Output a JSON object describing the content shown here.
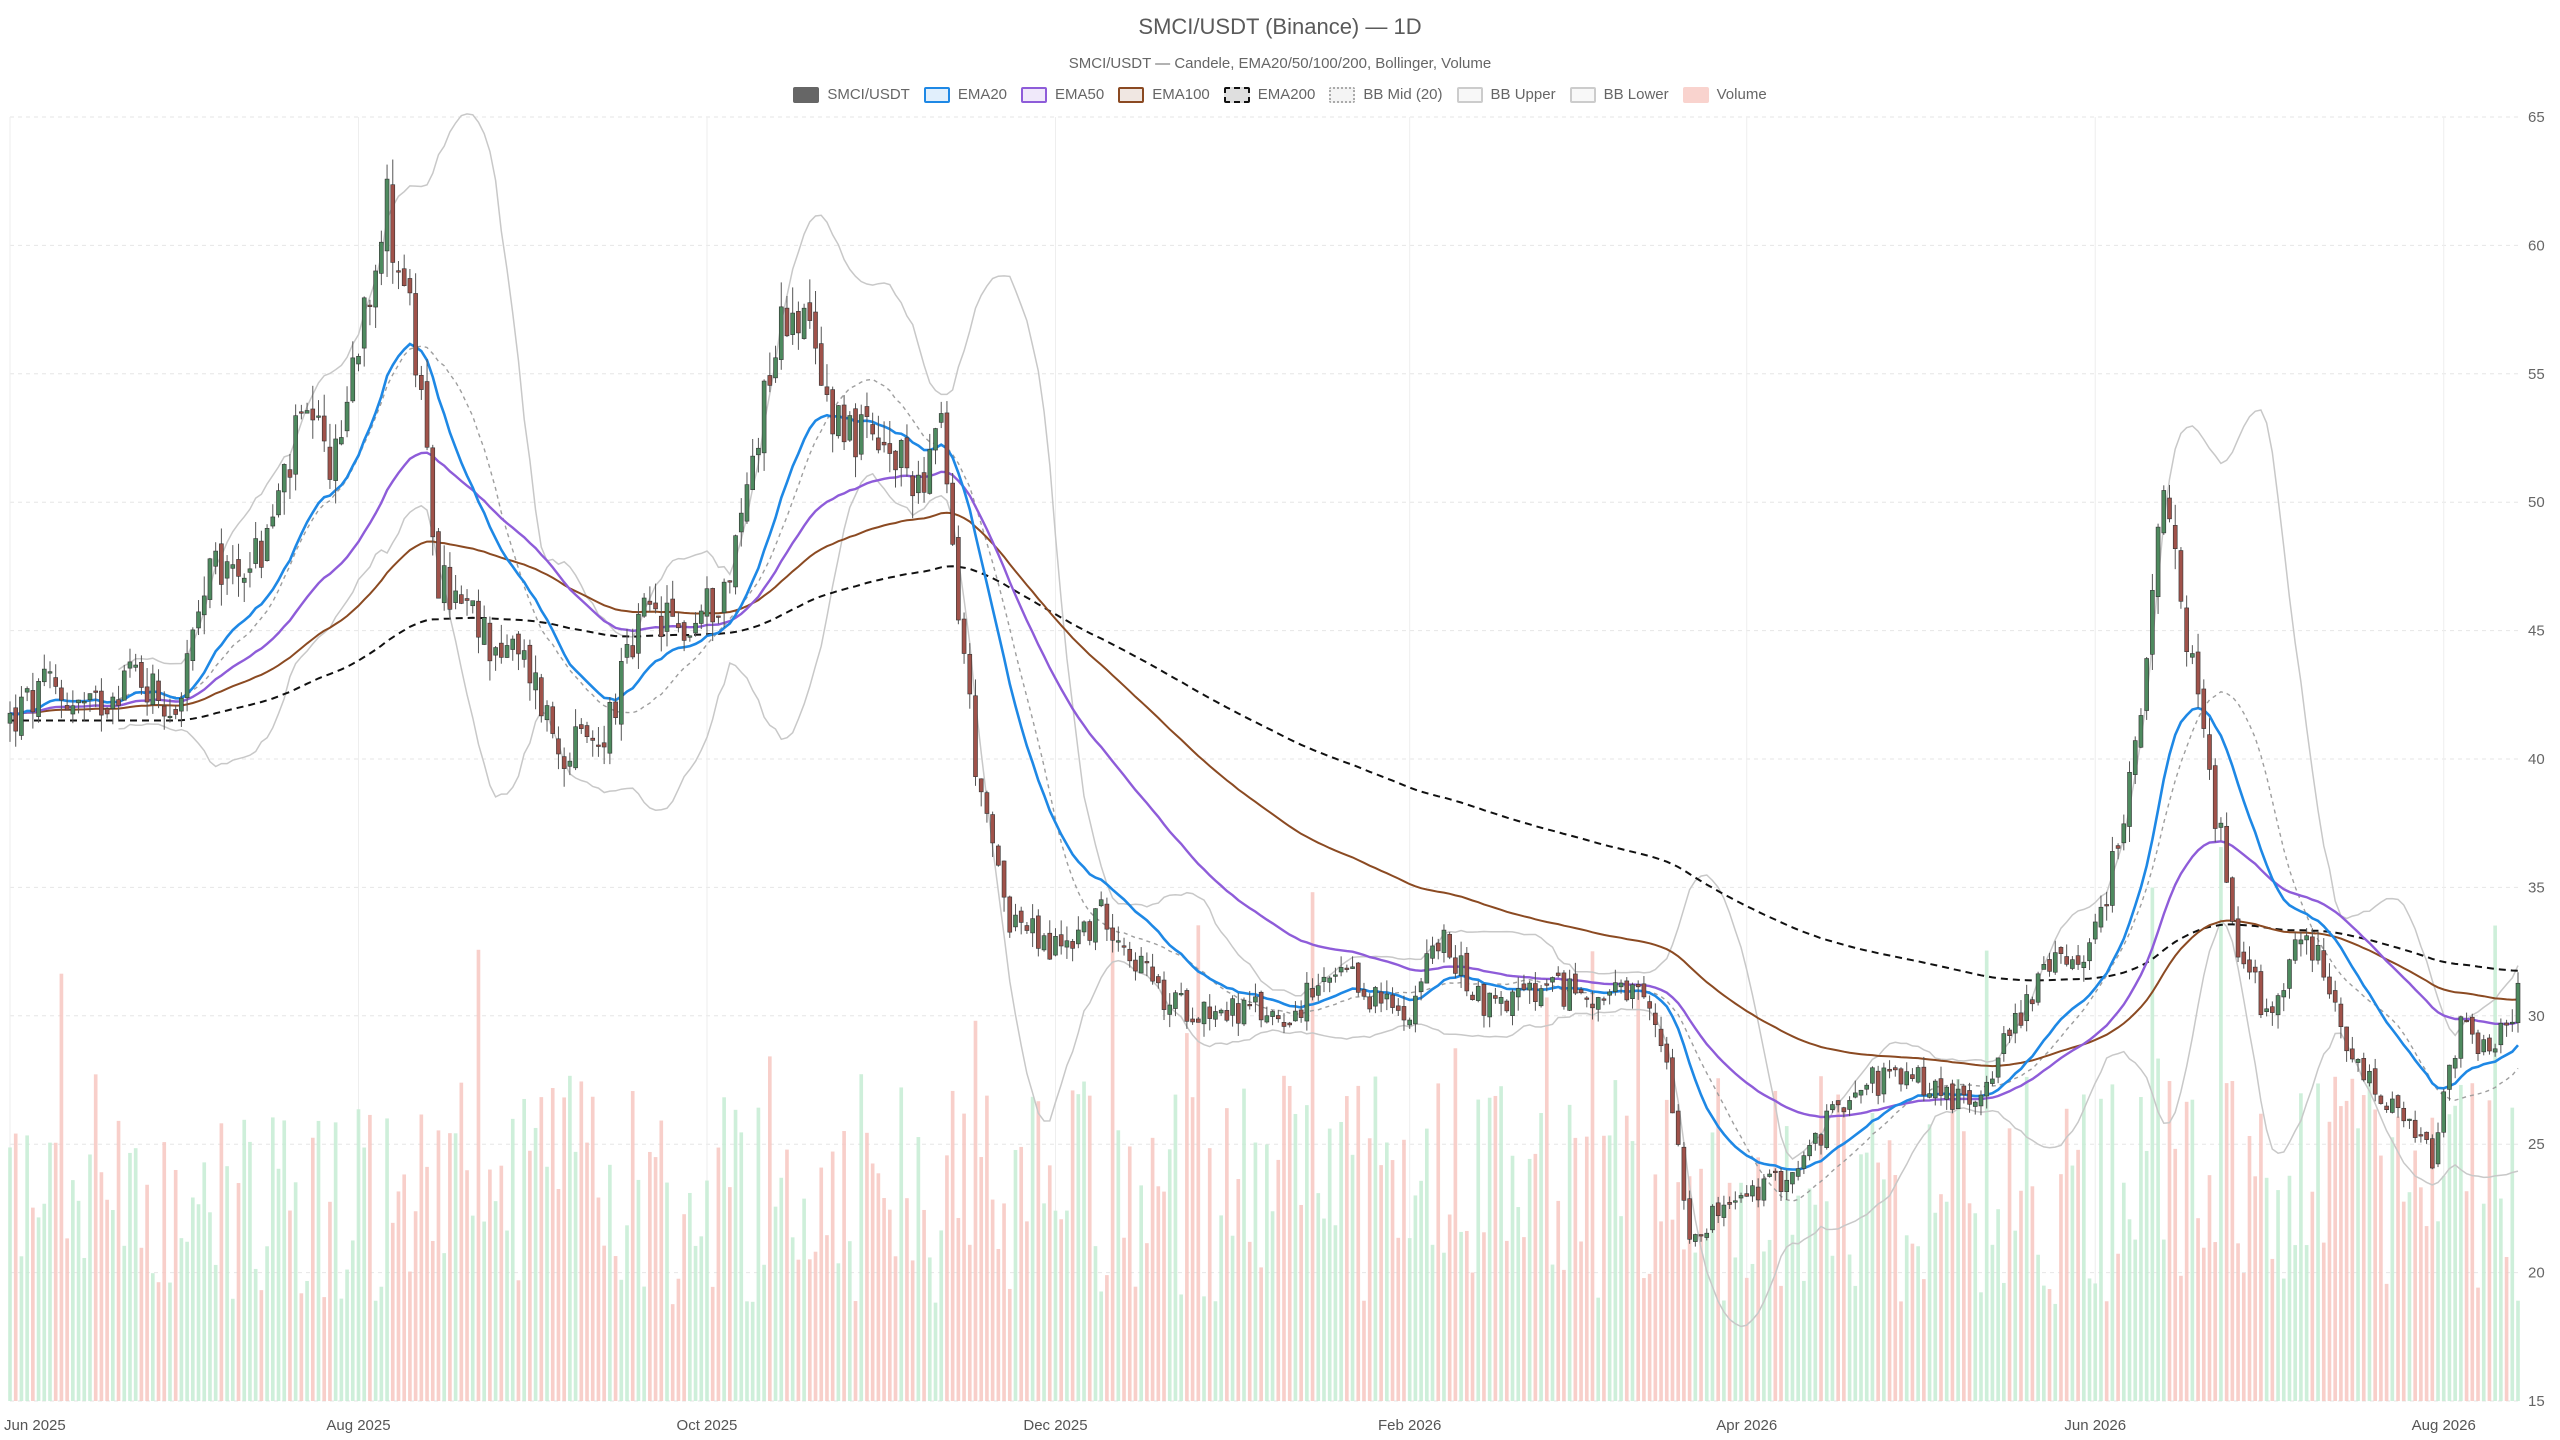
{
  "chart_data": {
    "type": "candlestick",
    "title": "SMCI/USDT (Binance) — 1D",
    "subtitle": "SMCI/USDT — Candele, EMA20/50/100/200, Bollinger, Volume",
    "legend": [
      {
        "name": "SMCI/USDT",
        "color": "#666666",
        "style": "solid"
      },
      {
        "name": "EMA20",
        "color": "#1e88e5",
        "style": "solid"
      },
      {
        "name": "EMA50",
        "color": "#8e5cd9",
        "style": "solid"
      },
      {
        "name": "EMA100",
        "color": "#8b4a22",
        "style": "solid"
      },
      {
        "name": "EMA200",
        "color": "#111111",
        "style": "dashed"
      },
      {
        "name": "BB Mid (20)",
        "color": "#aaaaaa",
        "style": "dotted"
      },
      {
        "name": "BB Upper",
        "color": "#cccccc",
        "style": "solid"
      },
      {
        "name": "BB Lower",
        "color": "#cccccc",
        "style": "solid"
      },
      {
        "name": "Volume",
        "color": "#f4b6b0",
        "style": "solid"
      }
    ],
    "x_ticks": [
      "Jun 2025",
      "Aug 2025",
      "Oct 2025",
      "Dec 2025",
      "Feb 2026",
      "Apr 2026",
      "Jun 2026",
      "Aug 2026"
    ],
    "y_ticks": [
      15,
      20,
      25,
      30,
      35,
      40,
      45,
      50,
      55,
      60,
      65
    ],
    "ylim": [
      15,
      65
    ],
    "x_range": [
      "2025-06-01",
      "2026-08-01"
    ],
    "grid": true,
    "legend_position": "top-center",
    "colors": {
      "up": "#4e8a5f",
      "down": "#a0524a",
      "volume_up": "#c6ecd3",
      "volume_down": "#f7c7c1"
    },
    "price_path_anchors": [
      [
        "2025-06-01",
        41.5
      ],
      [
        "2025-06-08",
        42.8
      ],
      [
        "2025-06-15",
        41.8
      ],
      [
        "2025-06-22",
        43.5
      ],
      [
        "2025-06-30",
        42.0
      ],
      [
        "2025-07-06",
        47.0
      ],
      [
        "2025-07-15",
        48.0
      ],
      [
        "2025-07-22",
        53.0
      ],
      [
        "2025-07-28",
        51.5
      ],
      [
        "2025-08-02",
        58.0
      ],
      [
        "2025-08-06",
        61.5
      ],
      [
        "2025-08-10",
        57.5
      ],
      [
        "2025-08-15",
        47.0
      ],
      [
        "2025-08-22",
        45.0
      ],
      [
        "2025-08-31",
        43.5
      ],
      [
        "2025-09-05",
        40.5
      ],
      [
        "2025-09-12",
        40.5
      ],
      [
        "2025-09-20",
        45.5
      ],
      [
        "2025-09-28",
        45.0
      ],
      [
        "2025-10-05",
        47.0
      ],
      [
        "2025-10-12",
        55.5
      ],
      [
        "2025-10-16",
        58.0
      ],
      [
        "2025-10-22",
        54.0
      ],
      [
        "2025-10-30",
        52.0
      ],
      [
        "2025-11-07",
        51.0
      ],
      [
        "2025-11-11",
        52.5
      ],
      [
        "2025-11-14",
        46.0
      ],
      [
        "2025-11-18",
        38.0
      ],
      [
        "2025-11-23",
        34.0
      ],
      [
        "2025-11-30",
        32.5
      ],
      [
        "2025-12-10",
        34.0
      ],
      [
        "2025-12-20",
        30.5
      ],
      [
        "2026-01-10",
        30.0
      ],
      [
        "2026-01-20",
        31.5
      ],
      [
        "2026-01-31",
        30.0
      ],
      [
        "2026-02-06",
        33.0
      ],
      [
        "2026-02-14",
        30.5
      ],
      [
        "2026-03-01",
        31.0
      ],
      [
        "2026-03-14",
        30.5
      ],
      [
        "2026-03-18",
        28.5
      ],
      [
        "2026-03-22",
        21.5
      ],
      [
        "2026-03-28",
        22.5
      ],
      [
        "2026-04-10",
        24.0
      ],
      [
        "2026-04-20",
        27.5
      ],
      [
        "2026-05-01",
        27.5
      ],
      [
        "2026-05-10",
        26.5
      ],
      [
        "2026-05-15",
        28.5
      ],
      [
        "2026-05-22",
        31.5
      ],
      [
        "2026-06-01",
        33.0
      ],
      [
        "2026-06-08",
        40.0
      ],
      [
        "2026-06-13",
        50.0
      ],
      [
        "2026-06-17",
        45.0
      ],
      [
        "2026-06-22",
        38.0
      ],
      [
        "2026-06-26",
        33.0
      ],
      [
        "2026-07-01",
        30.0
      ],
      [
        "2026-07-08",
        33.5
      ],
      [
        "2026-07-15",
        28.5
      ],
      [
        "2026-07-22",
        26.5
      ],
      [
        "2026-07-30",
        24.5
      ],
      [
        "2026-08-04",
        29.5
      ],
      [
        "2026-08-10",
        28.5
      ],
      [
        "2026-08-14",
        31.0
      ]
    ]
  }
}
